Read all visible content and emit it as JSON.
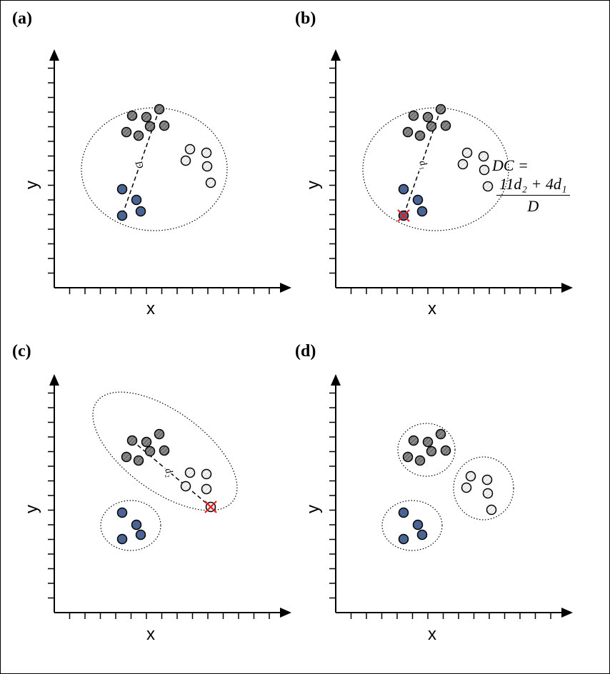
{
  "panels": [
    {
      "label": "(a)",
      "xlabel": "x",
      "ylabel": "y",
      "distance_label": "D"
    },
    {
      "label": "(b)",
      "xlabel": "x",
      "ylabel": "y",
      "distance_label": "d₁"
    },
    {
      "label": "(c)",
      "xlabel": "x",
      "ylabel": "y",
      "distance_label": "d₂"
    },
    {
      "label": "(d)",
      "xlabel": "x",
      "ylabel": "y"
    }
  ],
  "formula": {
    "lhs": "DC =",
    "numerator": "11d₂ + 4d₁",
    "denominator": "D"
  },
  "colors": {
    "cluster_gray": "#8a8a8a",
    "cluster_light": "#ededed",
    "cluster_blue": "#4a6494",
    "marker_cross": "#e02020",
    "axis": "#000000"
  }
}
